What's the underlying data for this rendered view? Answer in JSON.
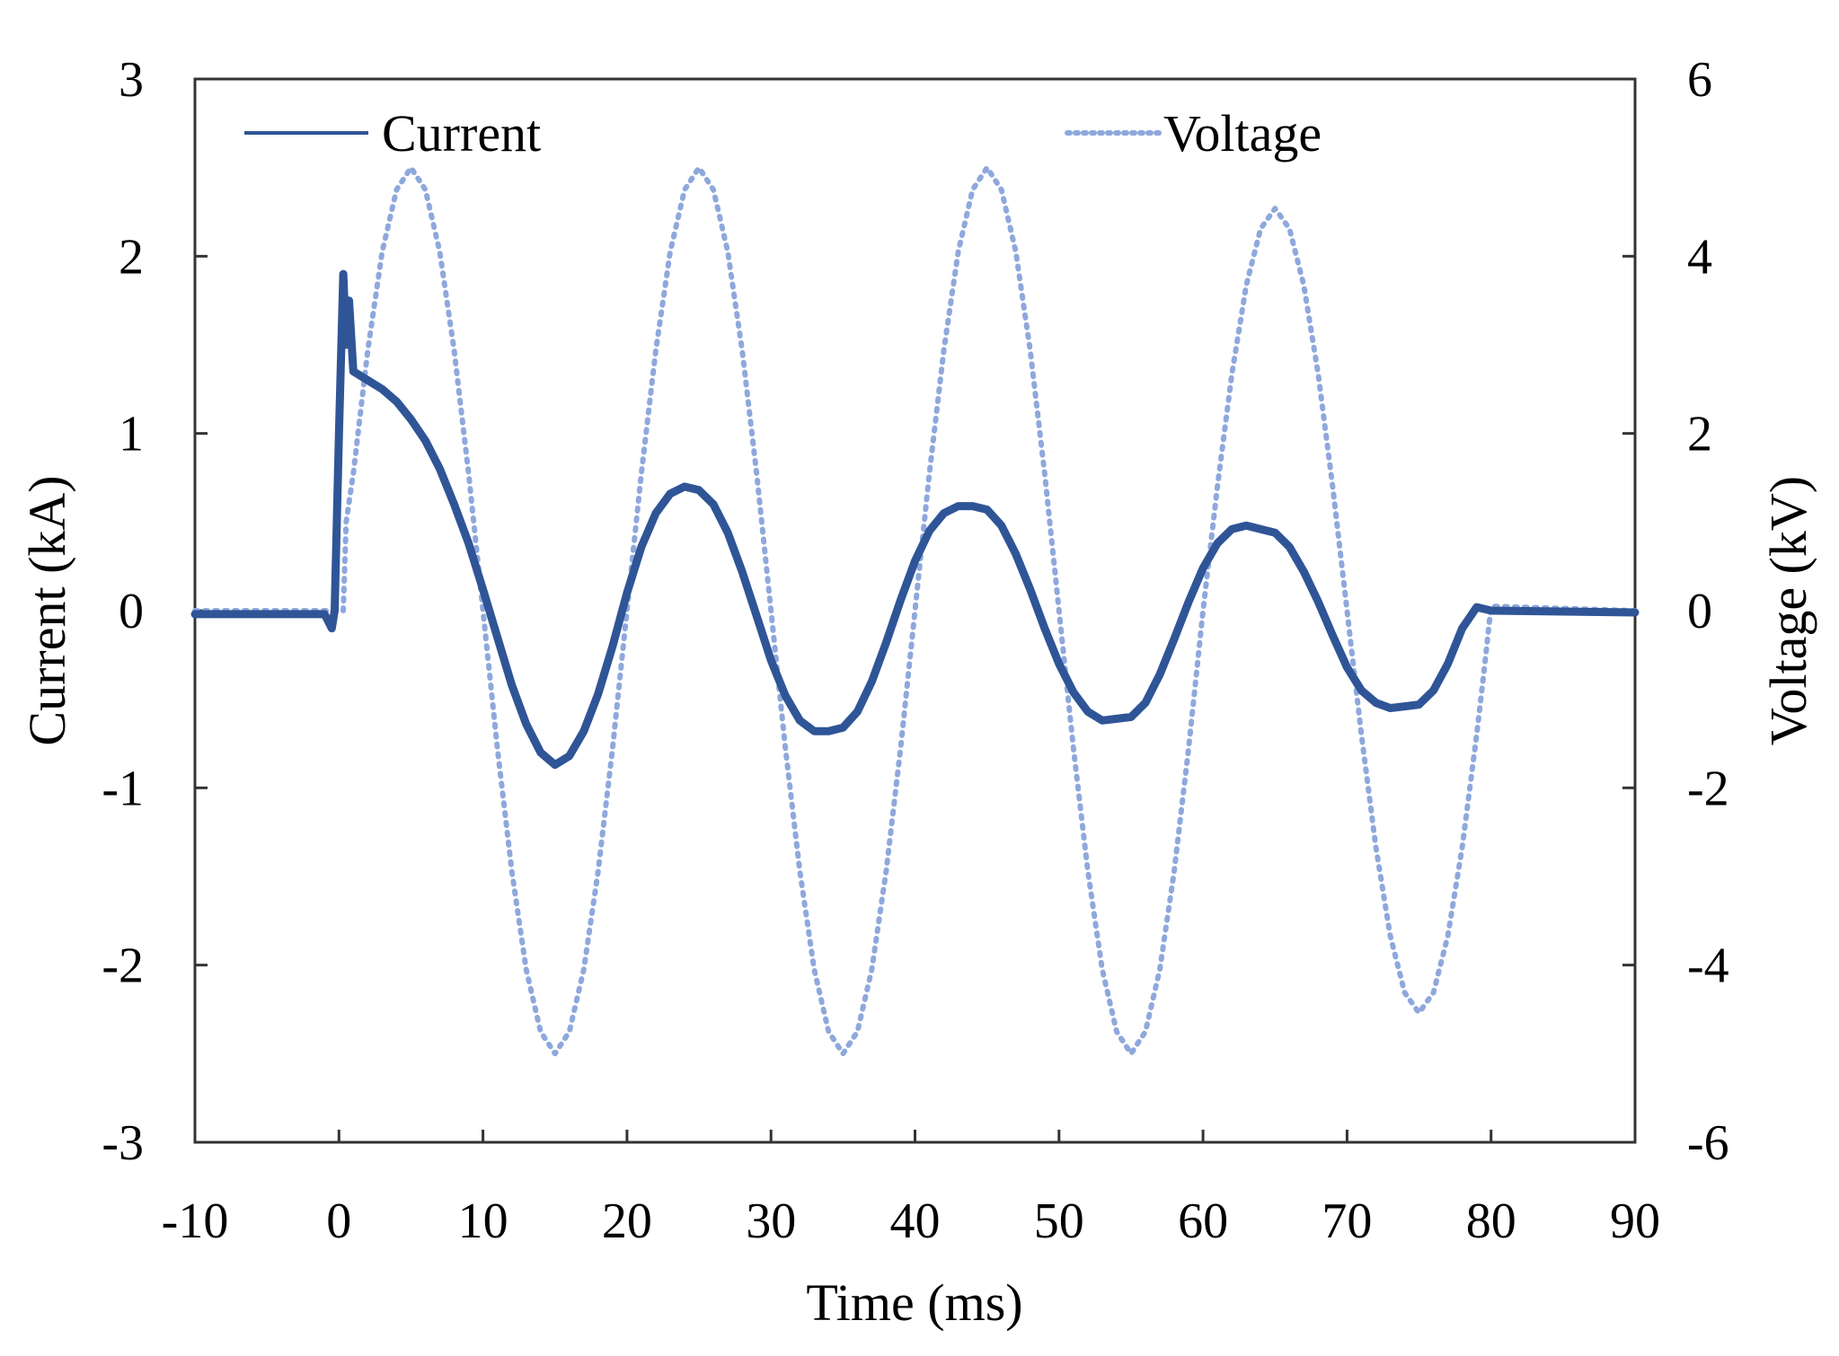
{
  "chart_data": {
    "type": "line",
    "title": "",
    "xlabel": "Time (ms)",
    "ylabel_left": "Current (kA)",
    "ylabel_right": "Voltage (kV)",
    "xlim": [
      -10,
      90
    ],
    "ylim_left": [
      -3,
      3
    ],
    "ylim_right": [
      -6,
      6
    ],
    "x_ticks": [
      "-10",
      "0",
      "10",
      "20",
      "30",
      "40",
      "50",
      "60",
      "70",
      "80",
      "90"
    ],
    "y_left_ticks": [
      "-3",
      "-2",
      "-1",
      "0",
      "1",
      "2",
      "3"
    ],
    "y_right_ticks": [
      "-6",
      "-4",
      "-2",
      "0",
      "2",
      "4",
      "6"
    ],
    "grid": false,
    "legend_position": "top",
    "series": [
      {
        "name": "Current",
        "axis": "left",
        "style": "solid",
        "color": "#2f5597",
        "x": [
          -10,
          -1,
          -0.5,
          -0.3,
          0,
          0.3,
          0.5,
          0.7,
          1,
          2,
          3,
          4,
          5,
          6,
          7,
          8,
          9,
          10,
          11,
          12,
          13,
          14,
          15,
          16,
          17,
          18,
          19,
          20,
          21,
          22,
          23,
          24,
          25,
          26,
          27,
          28,
          29,
          30,
          31,
          32,
          33,
          34,
          35,
          36,
          37,
          38,
          39,
          40,
          41,
          42,
          43,
          44,
          45,
          46,
          47,
          48,
          49,
          50,
          51,
          52,
          53,
          54,
          55,
          56,
          57,
          58,
          59,
          60,
          61,
          62,
          63,
          64,
          65,
          66,
          67,
          68,
          69,
          70,
          71,
          72,
          73,
          74,
          75,
          76,
          77,
          78,
          79,
          80,
          90
        ],
        "y": [
          -0.02,
          -0.02,
          -0.1,
          0.0,
          1.0,
          1.9,
          1.5,
          1.75,
          1.35,
          1.3,
          1.25,
          1.18,
          1.08,
          0.96,
          0.8,
          0.6,
          0.38,
          0.12,
          -0.15,
          -0.42,
          -0.64,
          -0.8,
          -0.87,
          -0.82,
          -0.68,
          -0.47,
          -0.2,
          0.1,
          0.36,
          0.55,
          0.66,
          0.7,
          0.68,
          0.6,
          0.44,
          0.22,
          -0.03,
          -0.28,
          -0.48,
          -0.62,
          -0.68,
          -0.68,
          -0.66,
          -0.57,
          -0.4,
          -0.18,
          0.06,
          0.28,
          0.45,
          0.55,
          0.59,
          0.59,
          0.57,
          0.48,
          0.32,
          0.12,
          -0.1,
          -0.3,
          -0.46,
          -0.57,
          -0.62,
          -0.61,
          -0.6,
          -0.52,
          -0.36,
          -0.16,
          0.05,
          0.24,
          0.38,
          0.46,
          0.48,
          0.46,
          0.44,
          0.36,
          0.22,
          0.05,
          -0.14,
          -0.32,
          -0.45,
          -0.52,
          -0.55,
          -0.54,
          -0.53,
          -0.45,
          -0.3,
          -0.1,
          0.02,
          0.0,
          -0.01
        ]
      },
      {
        "name": "Voltage",
        "axis": "right",
        "style": "dotted",
        "color": "#8fa8dc",
        "x": [
          -10,
          0.3,
          0.5,
          1,
          2,
          3,
          4,
          5,
          6,
          7,
          8,
          9,
          10,
          11,
          12,
          13,
          14,
          15,
          16,
          17,
          18,
          19,
          20,
          21,
          22,
          23,
          24,
          25,
          26,
          27,
          28,
          29,
          30,
          31,
          32,
          33,
          34,
          35,
          36,
          37,
          38,
          39,
          40,
          41,
          42,
          43,
          44,
          45,
          46,
          47,
          48,
          49,
          50,
          51,
          52,
          53,
          54,
          55,
          56,
          57,
          58,
          59,
          60,
          61,
          62,
          63,
          64,
          65,
          66,
          67,
          68,
          69,
          70,
          71,
          72,
          73,
          74,
          75,
          76,
          77,
          78,
          79,
          79.5,
          80,
          90
        ],
        "y": [
          0.0,
          0.0,
          1.0,
          1.55,
          2.94,
          4.05,
          4.75,
          5.0,
          4.75,
          4.05,
          2.94,
          1.55,
          0.0,
          -1.55,
          -2.94,
          -4.05,
          -4.75,
          -5.0,
          -4.75,
          -4.05,
          -2.94,
          -1.55,
          0.0,
          1.55,
          2.94,
          4.05,
          4.75,
          5.0,
          4.75,
          4.05,
          2.94,
          1.55,
          0.0,
          -1.55,
          -2.94,
          -4.05,
          -4.75,
          -5.0,
          -4.75,
          -4.05,
          -2.94,
          -1.55,
          0.0,
          1.55,
          2.94,
          4.05,
          4.75,
          5.0,
          4.75,
          4.05,
          2.94,
          1.55,
          0.0,
          -1.55,
          -2.94,
          -4.05,
          -4.75,
          -5.0,
          -4.75,
          -4.05,
          -2.94,
          -1.55,
          0.0,
          1.4,
          2.67,
          3.67,
          4.31,
          4.54,
          4.31,
          3.67,
          2.67,
          1.4,
          0.0,
          -1.4,
          -2.67,
          -3.67,
          -4.31,
          -4.54,
          -4.31,
          -3.67,
          -2.67,
          -1.4,
          -0.7,
          0.05,
          0.0
        ]
      }
    ]
  }
}
